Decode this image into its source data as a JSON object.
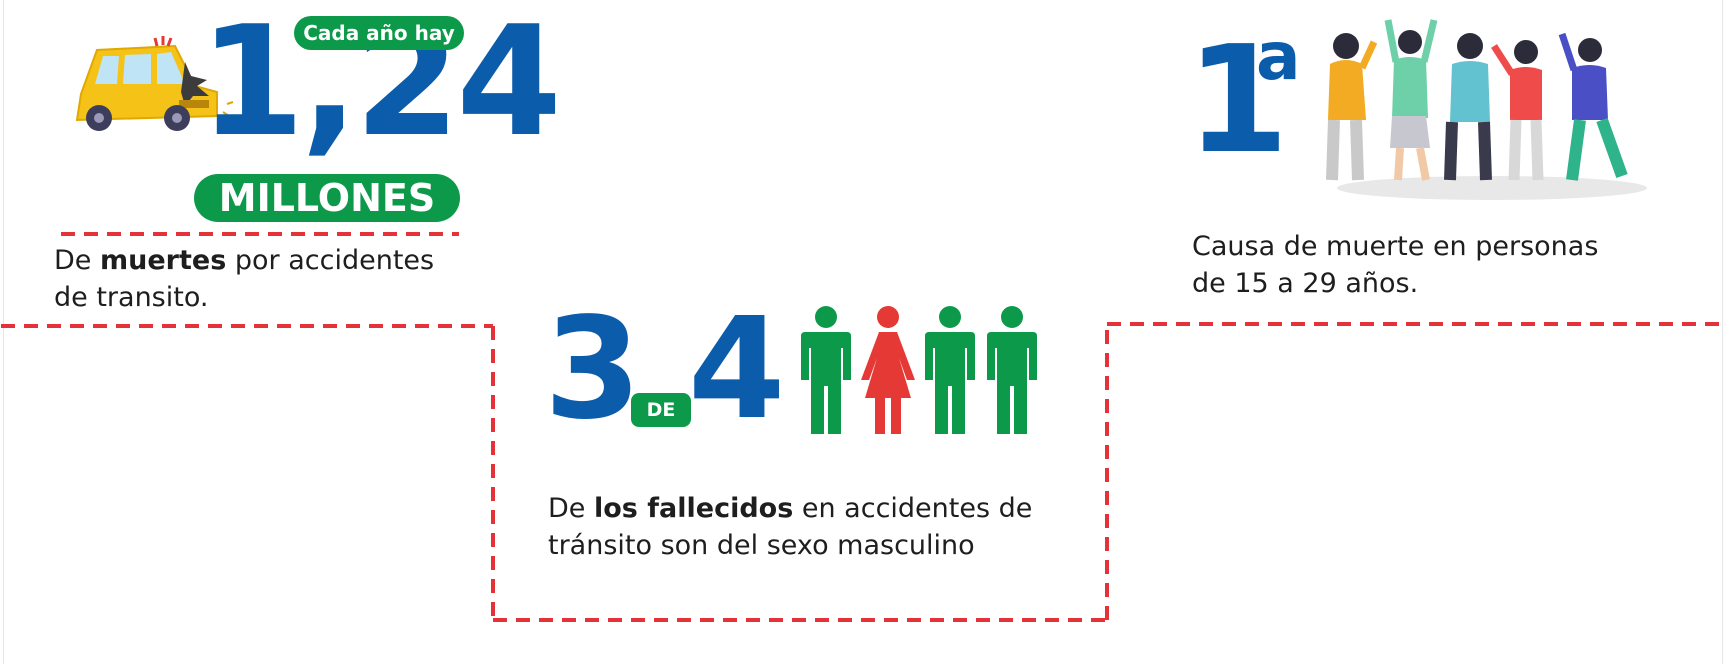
{
  "stat_deaths": {
    "pill_top": "Cada año hay",
    "number": "1,24",
    "pill_bottom": "MILLONES",
    "desc_prefix": "De",
    "desc_bold": "muertes",
    "desc_suffix": "por accidentes",
    "desc_line2": "de transito."
  },
  "stat_cause": {
    "number": "1",
    "superscript": "a",
    "desc_line1": "Causa de muerte en personas",
    "desc_line2": "de 15 a 29 años."
  },
  "stat_males": {
    "number_left": "3",
    "connector": "DE",
    "number_right": "4",
    "desc_prefix": "De",
    "desc_bold": "los fallecidos",
    "desc_suffix": "en accidentes de",
    "desc_line2": "tránsito son del sexo masculino",
    "figures": [
      "male",
      "female",
      "male",
      "male"
    ]
  },
  "colors": {
    "blue": "#0b5cab",
    "green": "#0c9a4a",
    "red": "#e53935",
    "dash_red": "#e53238"
  }
}
